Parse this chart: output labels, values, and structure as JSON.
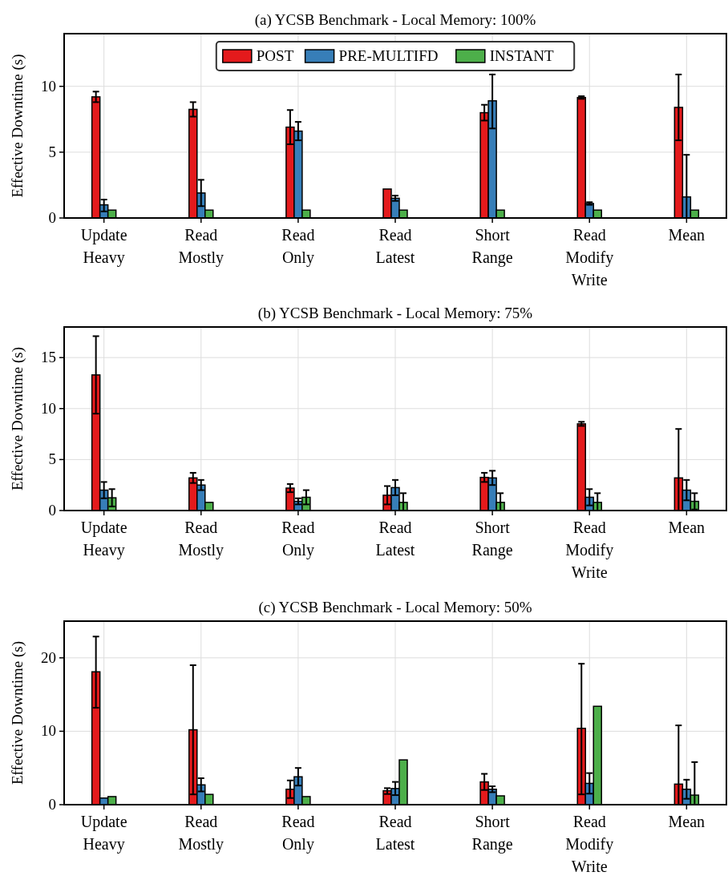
{
  "chart_data": [
    {
      "type": "bar",
      "title": "(a) YCSB Benchmark - Local Memory: 100%",
      "ylabel": "Effective Downtime (s)",
      "categories": [
        "Update Heavy",
        "Read Mostly",
        "Read Only",
        "Read Latest",
        "Short Range",
        "Read Modify Write",
        "Mean"
      ],
      "ylim": [
        0,
        14
      ],
      "yticks": [
        0,
        5,
        10
      ],
      "grid": true,
      "legend": "top",
      "series": [
        {
          "name": "POST",
          "color": "#e41a1c",
          "values": [
            9.2,
            8.25,
            6.9,
            2.2,
            8.0,
            9.15,
            8.4
          ],
          "errors": [
            [
              8.8,
              9.6
            ],
            [
              7.7,
              8.8
            ],
            [
              5.6,
              8.2
            ],
            null,
            [
              7.4,
              8.6
            ],
            [
              9.05,
              9.25
            ],
            [
              5.9,
              10.9
            ]
          ]
        },
        {
          "name": "PRE-MULTIFD",
          "color": "#377eb8",
          "values": [
            1.0,
            1.9,
            6.6,
            1.5,
            8.9,
            1.1,
            1.6
          ],
          "errors": [
            [
              0.5,
              1.4
            ],
            [
              0.9,
              2.9
            ],
            [
              5.9,
              7.3
            ],
            [
              1.3,
              1.7
            ],
            [
              6.8,
              10.9
            ],
            [
              1.0,
              1.2
            ],
            [
              0,
              4.8
            ]
          ]
        },
        {
          "name": "INSTANT",
          "color": "#4daf4a",
          "values": [
            0.6,
            0.6,
            0.6,
            0.6,
            0.6,
            0.6,
            0.6
          ]
        }
      ]
    },
    {
      "type": "bar",
      "title": "(b) YCSB Benchmark - Local Memory: 75%",
      "ylabel": "Effective Downtime (s)",
      "categories": [
        "Update Heavy",
        "Read Mostly",
        "Read Only",
        "Read Latest",
        "Short Range",
        "Read Modify Write",
        "Mean"
      ],
      "ylim": [
        0,
        18
      ],
      "yticks": [
        0,
        5,
        10,
        15
      ],
      "grid": true,
      "series": [
        {
          "color": "#e41a1c",
          "values": [
            13.3,
            3.2,
            2.2,
            1.5,
            3.25,
            8.5,
            3.2
          ],
          "errors": [
            [
              9.5,
              17.1
            ],
            [
              2.7,
              3.7
            ],
            [
              1.8,
              2.6
            ],
            [
              0.6,
              2.4
            ],
            [
              2.8,
              3.7
            ],
            [
              8.3,
              8.7
            ],
            [
              0,
              8.0
            ]
          ]
        },
        {
          "color": "#377eb8",
          "values": [
            2.0,
            2.5,
            0.9,
            2.25,
            3.2,
            1.3,
            2.0
          ],
          "errors": [
            [
              1.2,
              2.8
            ],
            [
              2.0,
              3.0
            ],
            [
              0.6,
              1.2
            ],
            [
              1.5,
              3.0
            ],
            [
              2.5,
              3.9
            ],
            [
              0.5,
              2.1
            ],
            [
              1.0,
              3.0
            ]
          ]
        },
        {
          "color": "#4daf4a",
          "values": [
            1.25,
            0.8,
            1.3,
            0.8,
            0.8,
            0.8,
            0.9
          ],
          "errors": [
            [
              0.4,
              2.1
            ],
            null,
            [
              0.6,
              2.0
            ],
            [
              0,
              1.7
            ],
            [
              0,
              1.7
            ],
            [
              0,
              1.7
            ],
            [
              0.1,
              1.7
            ]
          ]
        }
      ]
    },
    {
      "type": "bar",
      "title": "(c) YCSB Benchmark - Local Memory: 50%",
      "ylabel": "Effective Downtime (s)",
      "categories": [
        "Update Heavy",
        "Read Mostly",
        "Read Only",
        "Read Latest",
        "Short Range",
        "Read Modify Write",
        "Mean"
      ],
      "ylim": [
        0,
        25
      ],
      "yticks": [
        0,
        10,
        20
      ],
      "grid": true,
      "series": [
        {
          "color": "#e41a1c",
          "values": [
            18.1,
            10.2,
            2.1,
            1.9,
            3.1,
            10.4,
            2.8
          ],
          "errors": [
            [
              13.2,
              22.9
            ],
            [
              1.4,
              19.0
            ],
            [
              0.9,
              3.3
            ],
            [
              1.45,
              2.25
            ],
            [
              2.0,
              4.2
            ],
            [
              1.4,
              19.2
            ],
            [
              0,
              10.8
            ]
          ]
        },
        {
          "color": "#377eb8",
          "values": [
            0.9,
            2.7,
            3.8,
            2.2,
            2.1,
            2.9,
            2.1
          ],
          "errors": [
            null,
            [
              1.8,
              3.6
            ],
            [
              2.6,
              5.0
            ],
            [
              1.3,
              3.1
            ],
            [
              1.7,
              2.5
            ],
            [
              1.5,
              4.3
            ],
            [
              0.8,
              3.4
            ]
          ]
        },
        {
          "color": "#4daf4a",
          "values": [
            1.1,
            1.4,
            1.1,
            6.1,
            1.2,
            13.4,
            1.3
          ],
          "errors": [
            null,
            null,
            null,
            null,
            null,
            null,
            [
              0,
              5.8
            ]
          ]
        }
      ]
    }
  ]
}
